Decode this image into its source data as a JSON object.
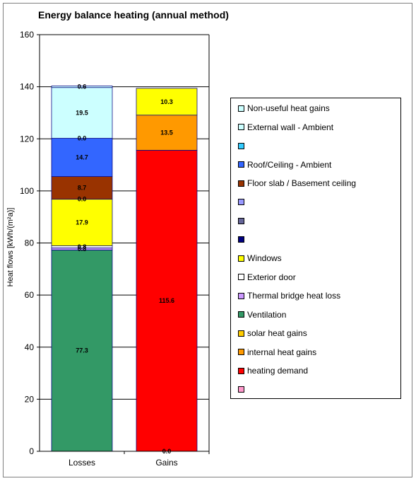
{
  "chart_data": {
    "type": "bar",
    "stacked": true,
    "title": "Energy balance heating (annual method)",
    "ylabel": "Heat flows [kWh/(m²a)]",
    "xlabel": "",
    "ylim": [
      0,
      160
    ],
    "yticks": [
      0,
      20,
      40,
      60,
      80,
      100,
      120,
      140,
      160
    ],
    "categories": [
      "Losses",
      "Gains"
    ],
    "grid": true,
    "legend_position": "right",
    "series": [
      {
        "name": "",
        "color": "#ff99cc",
        "values": [
          0,
          0.0
        ],
        "labels": [
          "",
          "0.0"
        ]
      },
      {
        "name": "heating demand",
        "color": "#ff0000",
        "values": [
          0,
          115.6
        ],
        "labels": [
          "",
          "115.6"
        ]
      },
      {
        "name": "internal heat gains",
        "color": "#ff9900",
        "values": [
          0,
          13.5
        ],
        "labels": [
          "",
          "13.5"
        ]
      },
      {
        "name": "solar heat gains",
        "color": "#ffff00",
        "values": [
          0,
          10.3
        ],
        "labels": [
          "",
          "10.3"
        ]
      },
      {
        "name": "Ventilation",
        "color": "#339966",
        "values": [
          77.3,
          0
        ],
        "labels": [
          "77.3",
          ""
        ]
      },
      {
        "name": "Thermal bridge heat loss",
        "color": "#cc99ff",
        "values": [
          0.8,
          0
        ],
        "labels": [
          "0.8",
          ""
        ]
      },
      {
        "name": "Exterior door",
        "color": "#ffffff",
        "values": [
          0.8,
          0
        ],
        "labels": [
          "0.8",
          ""
        ]
      },
      {
        "name": "Windows",
        "color": "#ffff00",
        "values": [
          17.9,
          0
        ],
        "labels": [
          "17.9",
          ""
        ]
      },
      {
        "name": "",
        "color": "#000080",
        "values": [
          0,
          0
        ],
        "labels": [
          "",
          ""
        ]
      },
      {
        "name": "",
        "color": "#666699",
        "values": [
          0,
          0
        ],
        "labels": [
          "",
          ""
        ]
      },
      {
        "name": "",
        "color": "#9999ff",
        "values": [
          0.0,
          0
        ],
        "labels": [
          "0.0",
          ""
        ]
      },
      {
        "name": "Floor slab / Basement ceiling",
        "color": "#993300",
        "values": [
          8.7,
          0
        ],
        "labels": [
          "8.7",
          ""
        ]
      },
      {
        "name": "Roof/Ceiling - Ambient",
        "color": "#3366ff",
        "values": [
          14.7,
          0
        ],
        "labels": [
          "14.7",
          ""
        ]
      },
      {
        "name": "",
        "color": "#33ccff",
        "values": [
          0.0,
          0
        ],
        "labels": [
          "0.0",
          ""
        ]
      },
      {
        "name": "External wall - Ambient",
        "color": "#ccffff",
        "values": [
          19.5,
          0
        ],
        "labels": [
          "19.5",
          ""
        ]
      },
      {
        "name": "Non-useful heat gains",
        "color": "#ccffff",
        "values": [
          0.6,
          0
        ],
        "labels": [
          "0.6",
          ""
        ]
      }
    ]
  },
  "legend": [
    {
      "label": "Non-useful heat gains",
      "color": "#ccffff"
    },
    {
      "label": "External wall - Ambient",
      "color": "#ccffff"
    },
    {
      "label": "",
      "color": "#33ccff"
    },
    {
      "label": "Roof/Ceiling - Ambient",
      "color": "#3366ff"
    },
    {
      "label": "Floor slab / Basement ceiling",
      "color": "#993300"
    },
    {
      "label": "",
      "color": "#9999ff"
    },
    {
      "label": "",
      "color": "#666699"
    },
    {
      "label": "",
      "color": "#000080"
    },
    {
      "label": "Windows",
      "color": "#ffff00"
    },
    {
      "label": "Exterior door",
      "color": "#ffffff"
    },
    {
      "label": "Thermal bridge heat loss",
      "color": "#cc99ff"
    },
    {
      "label": "Ventilation",
      "color": "#339966"
    },
    {
      "label": "solar heat gains",
      "color": "#ffcc00"
    },
    {
      "label": "internal heat gains",
      "color": "#ff9900"
    },
    {
      "label": "heating demand",
      "color": "#ff0000"
    },
    {
      "label": "",
      "color": "#ff99cc"
    }
  ]
}
